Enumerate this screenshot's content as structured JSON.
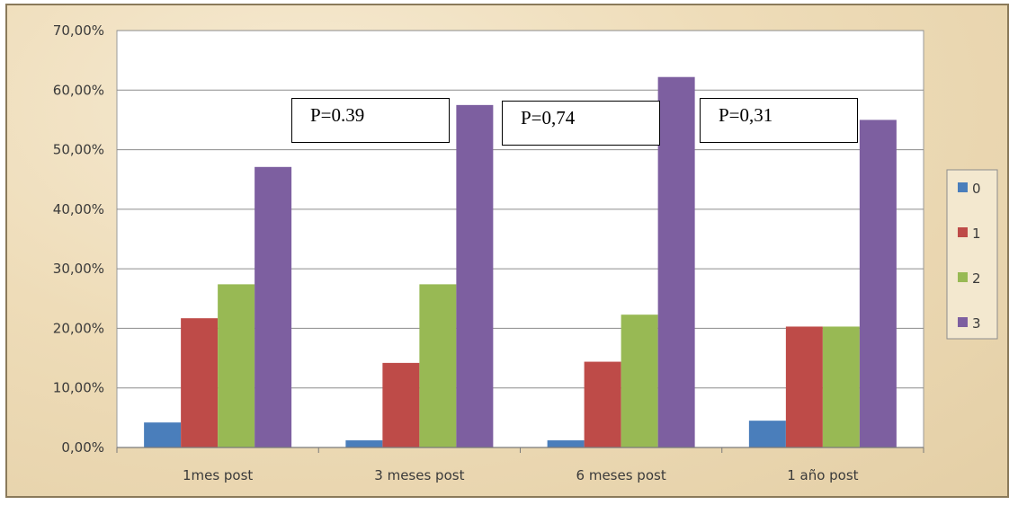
{
  "chart_data": {
    "type": "bar",
    "categories": [
      "1mes post",
      "3 meses post",
      "6 meses post",
      "1 año post"
    ],
    "series": [
      {
        "name": "0",
        "color": "#4a7ebb",
        "values": [
          4.2,
          1.2,
          1.2,
          4.5
        ]
      },
      {
        "name": "1",
        "color": "#be4b48",
        "values": [
          21.7,
          14.2,
          14.4,
          20.3
        ]
      },
      {
        "name": "2",
        "color": "#98b954",
        "values": [
          27.4,
          27.4,
          22.3,
          20.3
        ]
      },
      {
        "name": "3",
        "color": "#7d5fa0",
        "values": [
          47.1,
          57.5,
          62.2,
          55.0
        ]
      }
    ],
    "ylim": [
      0,
      70
    ],
    "yticks": [
      0,
      10,
      20,
      30,
      40,
      50,
      60,
      70
    ],
    "ytick_labels": [
      "0,00%",
      "10,00%",
      "20,00%",
      "30,00%",
      "40,00%",
      "50,00%",
      "60,00%",
      "70,00%"
    ],
    "grid": true,
    "legend_position": "right",
    "annotations": [
      "P=0.39",
      "P=0,74",
      "P=0,31"
    ],
    "title": "",
    "xlabel": "",
    "ylabel": ""
  }
}
